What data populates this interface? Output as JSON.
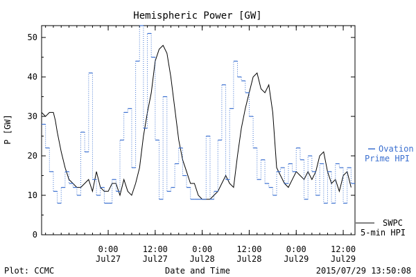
{
  "chart_data": {
    "type": "line",
    "title": "Hemispheric Power [GW]",
    "ylabel": "P [GW]",
    "xlabel": "Date and Time",
    "ylim": [
      0,
      53
    ],
    "xlim": [
      "2015-07-26T07:00",
      "2015-07-29T15:00"
    ],
    "y_ticks": [
      0,
      10,
      20,
      30,
      40,
      50
    ],
    "x_ticks": [
      {
        "x": "2015-07-27T00:00",
        "time": "0:00",
        "date": "Jul27"
      },
      {
        "x": "2015-07-27T12:00",
        "time": "12:00",
        "date": "Jul27"
      },
      {
        "x": "2015-07-28T00:00",
        "time": "0:00",
        "date": "Jul28"
      },
      {
        "x": "2015-07-28T12:00",
        "time": "12:00",
        "date": "Jul28"
      },
      {
        "x": "2015-07-29T00:00",
        "time": "0:00",
        "date": "Jul29"
      },
      {
        "x": "2015-07-29T12:00",
        "time": "12:00",
        "date": "Jul29"
      }
    ],
    "grid": false,
    "legend_position": "right",
    "series": [
      {
        "name": "SWPC 5-min HPI",
        "color": "#000000",
        "style": "solid",
        "x": [
          "2015-07-26T07:00",
          "2015-07-26T08:00",
          "2015-07-26T09:00",
          "2015-07-26T09:30",
          "2015-07-26T10:00",
          "2015-07-26T10:30",
          "2015-07-26T11:00",
          "2015-07-26T12:00",
          "2015-07-26T13:00",
          "2015-07-26T14:00",
          "2015-07-26T15:00",
          "2015-07-26T16:00",
          "2015-07-26T17:00",
          "2015-07-26T18:00",
          "2015-07-26T19:00",
          "2015-07-26T20:00",
          "2015-07-26T21:00",
          "2015-07-26T22:00",
          "2015-07-26T23:00",
          "2015-07-27T00:00",
          "2015-07-27T01:00",
          "2015-07-27T02:00",
          "2015-07-27T03:00",
          "2015-07-27T04:00",
          "2015-07-27T05:00",
          "2015-07-27T06:00",
          "2015-07-27T07:00",
          "2015-07-27T08:00",
          "2015-07-27T09:00",
          "2015-07-27T10:00",
          "2015-07-27T11:00",
          "2015-07-27T12:00",
          "2015-07-27T13:00",
          "2015-07-27T14:00",
          "2015-07-27T15:00",
          "2015-07-27T16:00",
          "2015-07-27T17:00",
          "2015-07-27T18:00",
          "2015-07-27T19:00",
          "2015-07-27T20:00",
          "2015-07-27T21:00",
          "2015-07-27T22:00",
          "2015-07-27T23:00",
          "2015-07-28T00:00",
          "2015-07-28T01:00",
          "2015-07-28T02:00",
          "2015-07-28T03:00",
          "2015-07-28T04:00",
          "2015-07-28T05:00",
          "2015-07-28T06:00",
          "2015-07-28T07:00",
          "2015-07-28T08:00",
          "2015-07-28T09:00",
          "2015-07-28T10:00",
          "2015-07-28T11:00",
          "2015-07-28T12:00",
          "2015-07-28T13:00",
          "2015-07-28T14:00",
          "2015-07-28T15:00",
          "2015-07-28T16:00",
          "2015-07-28T17:00",
          "2015-07-28T18:00",
          "2015-07-28T19:00",
          "2015-07-28T20:00",
          "2015-07-28T21:00",
          "2015-07-28T22:00",
          "2015-07-28T23:00",
          "2015-07-29T00:00",
          "2015-07-29T01:00",
          "2015-07-29T02:00",
          "2015-07-29T03:00",
          "2015-07-29T04:00",
          "2015-07-29T05:00",
          "2015-07-29T06:00",
          "2015-07-29T07:00",
          "2015-07-29T08:00",
          "2015-07-29T09:00",
          "2015-07-29T10:00",
          "2015-07-29T11:00",
          "2015-07-29T12:00",
          "2015-07-29T13:00",
          "2015-07-29T14:00"
        ],
        "values": [
          31,
          30,
          31,
          31,
          31,
          29,
          26,
          21,
          17,
          14,
          13,
          12,
          12,
          13,
          14,
          11,
          16,
          12,
          11,
          11,
          13,
          13,
          10,
          14,
          11,
          10,
          13,
          17,
          25,
          31,
          36,
          44,
          47,
          48,
          46,
          40,
          32,
          24,
          19,
          16,
          13,
          13,
          10,
          9,
          9,
          9,
          10,
          11,
          13,
          15,
          13,
          12,
          20,
          27,
          32,
          36,
          40,
          41,
          37,
          36,
          38,
          31,
          17,
          15,
          13,
          12,
          14,
          16,
          15,
          14,
          16,
          14,
          16,
          20,
          21,
          16,
          13,
          14,
          11,
          15,
          16,
          12
        ]
      },
      {
        "name": "Ovation Prime HPI",
        "color": "#3a6fd0",
        "style": "dotted-step",
        "x": [
          "2015-07-26T07:00",
          "2015-07-26T08:00",
          "2015-07-26T09:00",
          "2015-07-26T10:00",
          "2015-07-26T11:00",
          "2015-07-26T12:00",
          "2015-07-26T13:00",
          "2015-07-26T14:00",
          "2015-07-26T15:00",
          "2015-07-26T16:00",
          "2015-07-26T17:00",
          "2015-07-26T18:00",
          "2015-07-26T19:00",
          "2015-07-26T20:00",
          "2015-07-26T21:00",
          "2015-07-26T22:00",
          "2015-07-26T23:00",
          "2015-07-27T00:00",
          "2015-07-27T01:00",
          "2015-07-27T02:00",
          "2015-07-27T03:00",
          "2015-07-27T04:00",
          "2015-07-27T05:00",
          "2015-07-27T06:00",
          "2015-07-27T07:00",
          "2015-07-27T08:00",
          "2015-07-27T09:00",
          "2015-07-27T10:00",
          "2015-07-27T11:00",
          "2015-07-27T12:00",
          "2015-07-27T13:00",
          "2015-07-27T14:00",
          "2015-07-27T15:00",
          "2015-07-27T16:00",
          "2015-07-27T17:00",
          "2015-07-27T18:00",
          "2015-07-27T19:00",
          "2015-07-27T20:00",
          "2015-07-27T21:00",
          "2015-07-27T22:00",
          "2015-07-27T23:00",
          "2015-07-28T00:00",
          "2015-07-28T01:00",
          "2015-07-28T02:00",
          "2015-07-28T03:00",
          "2015-07-28T04:00",
          "2015-07-28T05:00",
          "2015-07-28T06:00",
          "2015-07-28T07:00",
          "2015-07-28T08:00",
          "2015-07-28T09:00",
          "2015-07-28T10:00",
          "2015-07-28T11:00",
          "2015-07-28T12:00",
          "2015-07-28T13:00",
          "2015-07-28T14:00",
          "2015-07-28T15:00",
          "2015-07-28T16:00",
          "2015-07-28T17:00",
          "2015-07-28T18:00",
          "2015-07-28T19:00",
          "2015-07-28T20:00",
          "2015-07-28T21:00",
          "2015-07-28T22:00",
          "2015-07-28T23:00",
          "2015-07-29T00:00",
          "2015-07-29T01:00",
          "2015-07-29T02:00",
          "2015-07-29T03:00",
          "2015-07-29T04:00",
          "2015-07-29T05:00",
          "2015-07-29T06:00",
          "2015-07-29T07:00",
          "2015-07-29T08:00",
          "2015-07-29T09:00",
          "2015-07-29T10:00",
          "2015-07-29T11:00",
          "2015-07-29T12:00",
          "2015-07-29T13:00",
          "2015-07-29T14:00"
        ],
        "values": [
          28,
          22,
          16,
          11,
          8,
          12,
          16,
          13,
          12,
          10,
          26,
          21,
          41,
          14,
          10,
          12,
          8,
          8,
          14,
          11,
          24,
          31,
          32,
          17,
          44,
          53,
          27,
          51,
          45,
          24,
          9,
          35,
          11,
          12,
          18,
          22,
          15,
          12,
          9,
          9,
          9,
          9,
          25,
          9,
          11,
          24,
          38,
          14,
          32,
          44,
          40,
          39,
          36,
          30,
          22,
          14,
          19,
          13,
          12,
          10,
          16,
          17,
          13,
          18,
          16,
          22,
          19,
          9,
          20,
          16,
          10,
          18,
          8,
          16,
          8,
          18,
          17,
          8,
          17,
          13
        ]
      }
    ]
  },
  "legend": {
    "ovation_line1": "Ovation",
    "ovation_line2": "Prime HPI",
    "swpc_line1": "SWPC",
    "swpc_line2": "5-min HPI"
  },
  "footer": {
    "left": "Plot: CCMC",
    "center": "Date and Time",
    "right": "2015/07/29 13:50:08"
  },
  "colors": {
    "swpc": "#000000",
    "ovation": "#3a6fd0",
    "axis": "#000000",
    "background": "#ffffff"
  }
}
